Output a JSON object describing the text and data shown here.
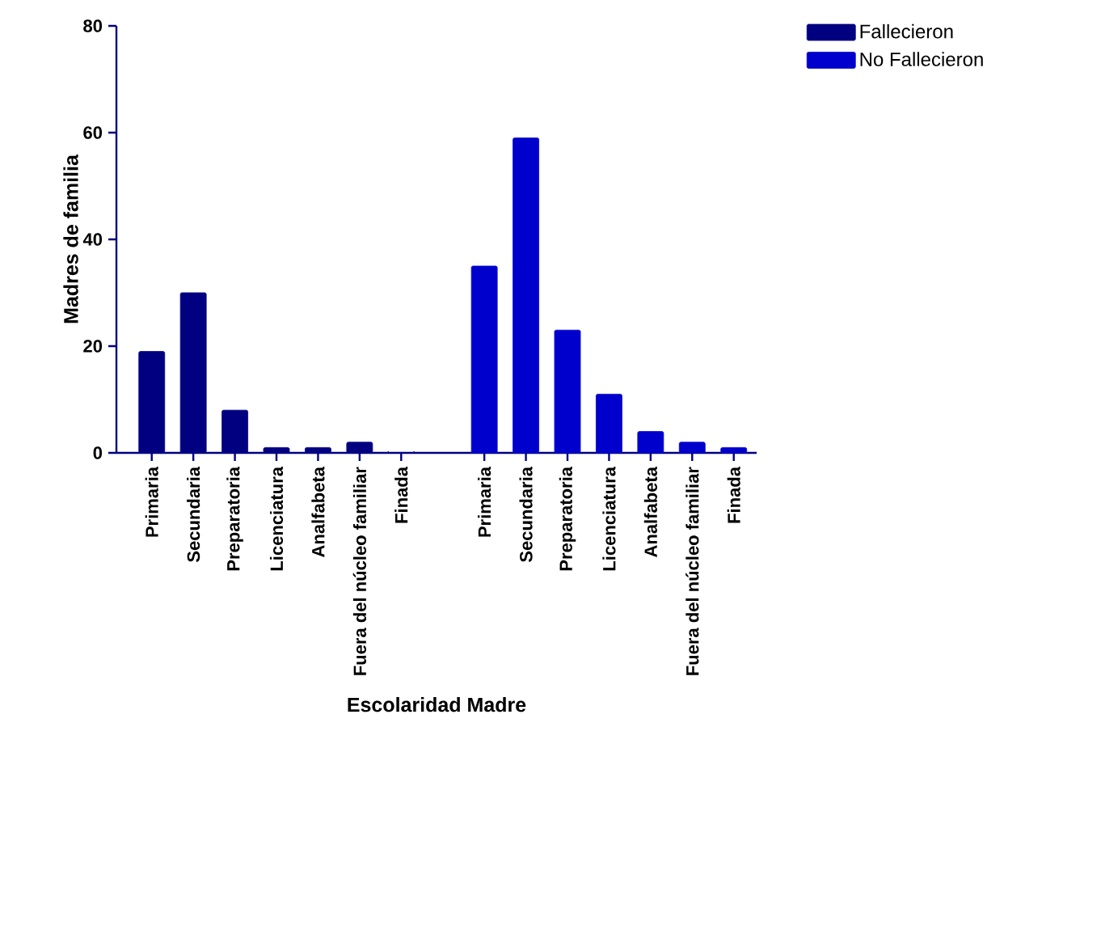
{
  "chart_data": {
    "type": "bar",
    "xlabel": "Escolaridad Madre",
    "ylabel": "Madres de familia",
    "categories": [
      "Primaria",
      "Secundaria",
      "Preparatoria",
      "Licenciatura",
      "Analfabeta",
      "Fuera del núcleo familiar",
      "Finada",
      null,
      "Primaria",
      "Secundaria",
      "Preparatoria",
      "Licenciatura",
      "Analfabeta",
      "Fuera del núcleo familiar",
      "Finada"
    ],
    "series": [
      {
        "name": "Fallecieron",
        "color": "#000080",
        "values": [
          19,
          30,
          8,
          1,
          1,
          2,
          0,
          null,
          null,
          null,
          null,
          null,
          null,
          null,
          null
        ]
      },
      {
        "name": "No Fallecieron",
        "color": "#0000cc",
        "values": [
          null,
          null,
          null,
          null,
          null,
          null,
          null,
          null,
          35,
          59,
          23,
          11,
          4,
          2,
          1
        ]
      }
    ],
    "ylim": [
      0,
      80
    ],
    "yticks": [
      0,
      20,
      40,
      60,
      80
    ],
    "grid": false,
    "legend": "top right"
  }
}
